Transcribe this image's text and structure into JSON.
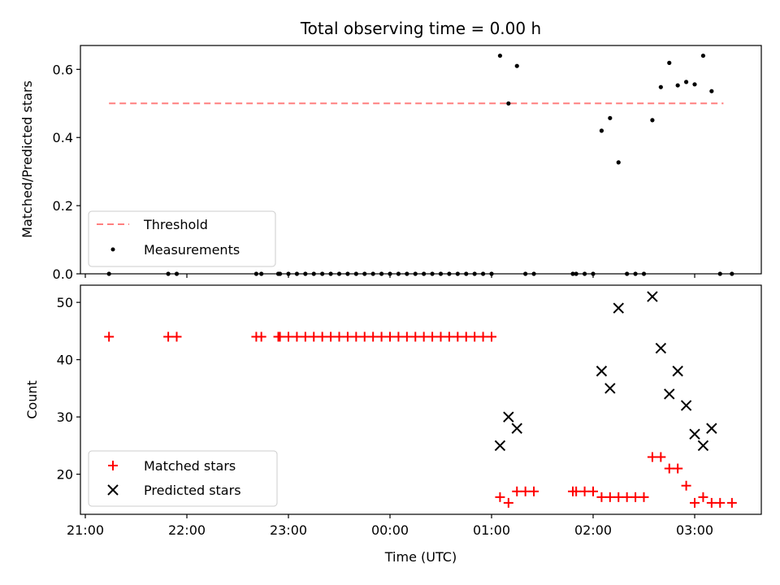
{
  "chart_data": {
    "type": "scatter",
    "title": "Total observing time = 0.00 h",
    "xlabel": "Time (UTC)",
    "x_tick_labels": [
      "21:00",
      "22:00",
      "23:00",
      "00:00",
      "01:00",
      "02:00",
      "03:00"
    ],
    "panels": [
      {
        "name": "ratio",
        "ylabel": "Matched/Predicted stars",
        "ylim": [
          0,
          0.67
        ],
        "y_ticks": [
          "0.0",
          "0.2",
          "0.4",
          "0.6"
        ],
        "threshold": {
          "name": "Threshold",
          "value": 0.5,
          "x": [
            "21:14",
            "03:17"
          ],
          "color": "#ff7f7f"
        },
        "series": [
          {
            "name": "Measurements",
            "color": "#000000",
            "marker": "dot",
            "points": [
              [
                "21:14",
                0.0
              ],
              [
                "21:49",
                0.0
              ],
              [
                "21:54",
                0.0
              ],
              [
                "22:41",
                0.0
              ],
              [
                "22:44",
                0.0
              ],
              [
                "22:54",
                0.0
              ],
              [
                "22:55",
                0.0
              ],
              [
                "23:00",
                0.0
              ],
              [
                "23:05",
                0.0
              ],
              [
                "23:10",
                0.0
              ],
              [
                "23:15",
                0.0
              ],
              [
                "23:20",
                0.0
              ],
              [
                "23:25",
                0.0
              ],
              [
                "23:30",
                0.0
              ],
              [
                "23:35",
                0.0
              ],
              [
                "23:40",
                0.0
              ],
              [
                "23:45",
                0.0
              ],
              [
                "23:50",
                0.0
              ],
              [
                "23:55",
                0.0
              ],
              [
                "00:00",
                0.0
              ],
              [
                "00:05",
                0.0
              ],
              [
                "00:10",
                0.0
              ],
              [
                "00:15",
                0.0
              ],
              [
                "00:20",
                0.0
              ],
              [
                "00:25",
                0.0
              ],
              [
                "00:30",
                0.0
              ],
              [
                "00:35",
                0.0
              ],
              [
                "00:40",
                0.0
              ],
              [
                "00:45",
                0.0
              ],
              [
                "00:50",
                0.0
              ],
              [
                "00:55",
                0.0
              ],
              [
                "01:00",
                0.0
              ],
              [
                "01:05",
                0.64
              ],
              [
                "01:10",
                0.5
              ],
              [
                "01:15",
                0.61
              ],
              [
                "01:20",
                0.0
              ],
              [
                "01:25",
                0.0
              ],
              [
                "01:48",
                0.0
              ],
              [
                "01:50",
                0.0
              ],
              [
                "01:55",
                0.0
              ],
              [
                "02:00",
                0.0
              ],
              [
                "02:05",
                0.42
              ],
              [
                "02:10",
                0.457
              ],
              [
                "02:15",
                0.327
              ],
              [
                "02:20",
                0.0
              ],
              [
                "02:25",
                0.0
              ],
              [
                "02:30",
                0.0
              ],
              [
                "02:35",
                0.451
              ],
              [
                "02:40",
                0.548
              ],
              [
                "02:45",
                0.619
              ],
              [
                "02:50",
                0.553
              ],
              [
                "02:55",
                0.563
              ],
              [
                "03:00",
                0.556
              ],
              [
                "03:05",
                0.64
              ],
              [
                "03:10",
                0.536
              ],
              [
                "03:15",
                0.0
              ],
              [
                "03:22",
                0.0
              ]
            ]
          }
        ],
        "legend": {
          "placement": "lower-left",
          "entries": [
            "Threshold",
            "Measurements"
          ]
        }
      },
      {
        "name": "counts",
        "ylabel": "Count",
        "ylim": [
          13,
          53
        ],
        "y_ticks": [
          "20",
          "30",
          "40",
          "50"
        ],
        "series": [
          {
            "name": "Matched stars",
            "color": "#ff0000",
            "marker": "plus",
            "points": [
              [
                "21:14",
                44
              ],
              [
                "21:49",
                44
              ],
              [
                "21:54",
                44
              ],
              [
                "22:41",
                44
              ],
              [
                "22:44",
                44
              ],
              [
                "22:54",
                44
              ],
              [
                "22:55",
                44
              ],
              [
                "23:00",
                44
              ],
              [
                "23:05",
                44
              ],
              [
                "23:10",
                44
              ],
              [
                "23:15",
                44
              ],
              [
                "23:20",
                44
              ],
              [
                "23:25",
                44
              ],
              [
                "23:30",
                44
              ],
              [
                "23:35",
                44
              ],
              [
                "23:40",
                44
              ],
              [
                "23:45",
                44
              ],
              [
                "23:50",
                44
              ],
              [
                "23:55",
                44
              ],
              [
                "00:00",
                44
              ],
              [
                "00:05",
                44
              ],
              [
                "00:10",
                44
              ],
              [
                "00:15",
                44
              ],
              [
                "00:20",
                44
              ],
              [
                "00:25",
                44
              ],
              [
                "00:30",
                44
              ],
              [
                "00:35",
                44
              ],
              [
                "00:40",
                44
              ],
              [
                "00:45",
                44
              ],
              [
                "00:50",
                44
              ],
              [
                "00:55",
                44
              ],
              [
                "01:00",
                44
              ],
              [
                "01:05",
                16
              ],
              [
                "01:10",
                15
              ],
              [
                "01:15",
                17
              ],
              [
                "01:20",
                17
              ],
              [
                "01:25",
                17
              ],
              [
                "01:48",
                17
              ],
              [
                "01:50",
                17
              ],
              [
                "01:55",
                17
              ],
              [
                "02:00",
                17
              ],
              [
                "02:05",
                16
              ],
              [
                "02:10",
                16
              ],
              [
                "02:15",
                16
              ],
              [
                "02:20",
                16
              ],
              [
                "02:25",
                16
              ],
              [
                "02:30",
                16
              ],
              [
                "02:35",
                23
              ],
              [
                "02:40",
                23
              ],
              [
                "02:45",
                21
              ],
              [
                "02:50",
                21
              ],
              [
                "02:55",
                18
              ],
              [
                "03:00",
                15
              ],
              [
                "03:05",
                16
              ],
              [
                "03:10",
                15
              ],
              [
                "03:15",
                15
              ],
              [
                "03:22",
                15
              ]
            ]
          },
          {
            "name": "Predicted stars",
            "color": "#000000",
            "marker": "x",
            "points": [
              [
                "01:05",
                25
              ],
              [
                "01:10",
                30
              ],
              [
                "01:15",
                28
              ],
              [
                "02:05",
                38
              ],
              [
                "02:10",
                35
              ],
              [
                "02:15",
                49
              ],
              [
                "02:35",
                51
              ],
              [
                "02:40",
                42
              ],
              [
                "02:45",
                34
              ],
              [
                "02:50",
                38
              ],
              [
                "02:55",
                32
              ],
              [
                "03:00",
                27
              ],
              [
                "03:05",
                25
              ],
              [
                "03:10",
                28
              ]
            ]
          }
        ],
        "legend": {
          "placement": "lower-left",
          "entries": [
            "Matched stars",
            "Predicted stars"
          ]
        }
      }
    ]
  }
}
